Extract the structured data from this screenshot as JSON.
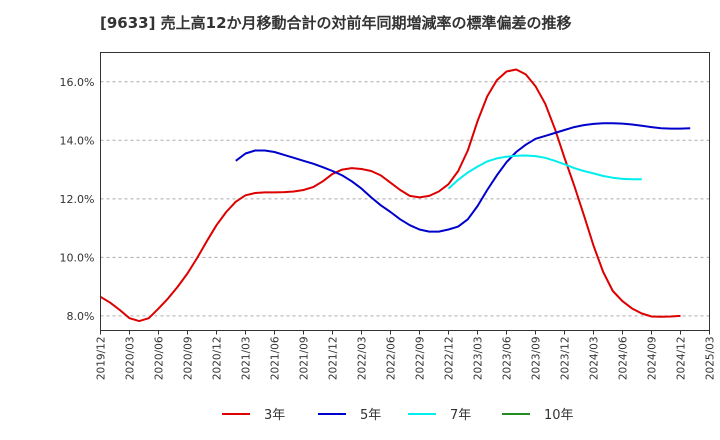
{
  "chart_data": {
    "type": "line",
    "title": "[9633]  売上高12か月移動合計の対前年同期増減率の標準偏差の推移",
    "xlabel": "",
    "ylabel": "",
    "ylim": [
      7.5,
      17.0
    ],
    "x_ticks": [
      "2019/12",
      "2020/03",
      "2020/06",
      "2020/09",
      "2020/12",
      "2021/03",
      "2021/06",
      "2021/09",
      "2021/12",
      "2022/03",
      "2022/06",
      "2022/09",
      "2022/12",
      "2023/03",
      "2023/06",
      "2023/09",
      "2023/12",
      "2024/03",
      "2024/06",
      "2024/09",
      "2024/12",
      "2025/03"
    ],
    "y_ticks": [
      "8.0%",
      "10.0%",
      "12.0%",
      "14.0%",
      "16.0%"
    ],
    "y_tick_values": [
      8,
      10,
      12,
      14,
      16
    ],
    "grid": "horizontal dashed",
    "legend_position": "bottom",
    "series": [
      {
        "name": "3年",
        "color": "#dd0000",
        "start": "2019/12",
        "values": [
          8.65,
          8.45,
          8.2,
          7.92,
          7.82,
          7.92,
          8.25,
          8.6,
          9.0,
          9.45,
          9.98,
          10.55,
          11.1,
          11.55,
          11.9,
          12.12,
          12.2,
          12.22,
          12.22,
          12.23,
          12.25,
          12.3,
          12.4,
          12.6,
          12.85,
          13.0,
          13.05,
          13.02,
          12.95,
          12.8,
          12.55,
          12.3,
          12.1,
          12.05,
          12.1,
          12.25,
          12.5,
          12.95,
          13.65,
          14.65,
          15.5,
          16.05,
          16.35,
          16.42,
          16.25,
          15.85,
          15.25,
          14.4,
          13.4,
          12.45,
          11.45,
          10.4,
          9.5,
          8.85,
          8.5,
          8.25,
          8.08,
          7.98,
          7.97,
          7.98,
          8.0
        ]
      },
      {
        "name": "5年",
        "color": "#0000cc",
        "start": "2021/02",
        "values": [
          13.3,
          13.55,
          13.65,
          13.65,
          13.6,
          13.5,
          13.4,
          13.3,
          13.2,
          13.08,
          12.95,
          12.8,
          12.6,
          12.35,
          12.05,
          11.78,
          11.55,
          11.3,
          11.1,
          10.95,
          10.88,
          10.88,
          10.95,
          11.05,
          11.3,
          11.75,
          12.3,
          12.8,
          13.25,
          13.6,
          13.85,
          14.05,
          14.15,
          14.25,
          14.35,
          14.45,
          14.52,
          14.56,
          14.58,
          14.58,
          14.57,
          14.54,
          14.5,
          14.45,
          14.41,
          14.4,
          14.4,
          14.41
        ]
      },
      {
        "name": "7年",
        "color": "#00eeee",
        "start": "2022/12",
        "values": [
          12.35,
          12.65,
          12.9,
          13.1,
          13.28,
          13.38,
          13.44,
          13.47,
          13.48,
          13.46,
          13.4,
          13.3,
          13.18,
          13.05,
          12.95,
          12.87,
          12.78,
          12.72,
          12.68,
          12.67,
          12.67
        ]
      },
      {
        "name": "10年",
        "color": "#228b22",
        "start": "2024/12",
        "values": []
      }
    ]
  }
}
